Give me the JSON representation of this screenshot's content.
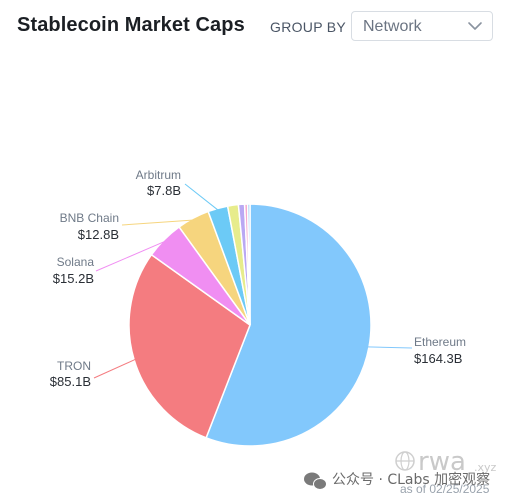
{
  "header": {
    "title": "Stablecoin Market Caps",
    "group_by_label": "GROUP BY",
    "group_by_value": "Network"
  },
  "chart_data": {
    "type": "pie",
    "title": "Stablecoin Market Caps",
    "unit": "B",
    "slices": [
      {
        "name": "Ethereum",
        "value": 164.3,
        "label": "$164.3B",
        "color": "#82c8fc",
        "labeled": true
      },
      {
        "name": "TRON",
        "value": 85.1,
        "label": "$85.1B",
        "color": "#f47c80",
        "labeled": true
      },
      {
        "name": "Solana",
        "value": 15.2,
        "label": "$15.2B",
        "color": "#f08ef2",
        "labeled": true
      },
      {
        "name": "BNB Chain",
        "value": 12.8,
        "label": "$12.8B",
        "color": "#f6d57e",
        "labeled": true
      },
      {
        "name": "Arbitrum",
        "value": 7.8,
        "label": "$7.8B",
        "color": "#6ccaf6",
        "labeled": true
      },
      {
        "name": "",
        "value": 4.2,
        "label": "",
        "color": "#e7ec8c",
        "labeled": false
      },
      {
        "name": "",
        "value": 2.4,
        "label": "",
        "color": "#b9a8f3",
        "labeled": false
      },
      {
        "name": "",
        "value": 1.2,
        "label": "",
        "color": "#f6a9cf",
        "labeled": false
      },
      {
        "name": "",
        "value": 0.9,
        "label": "",
        "color": "#8ec9f4",
        "labeled": false
      }
    ]
  },
  "footer": {
    "as_of": "as of 02/25/2025",
    "watermark_cn": "公众号 · CLabs 加密观察",
    "watermark_big": "rwa",
    "watermark_small": ".xyz"
  }
}
